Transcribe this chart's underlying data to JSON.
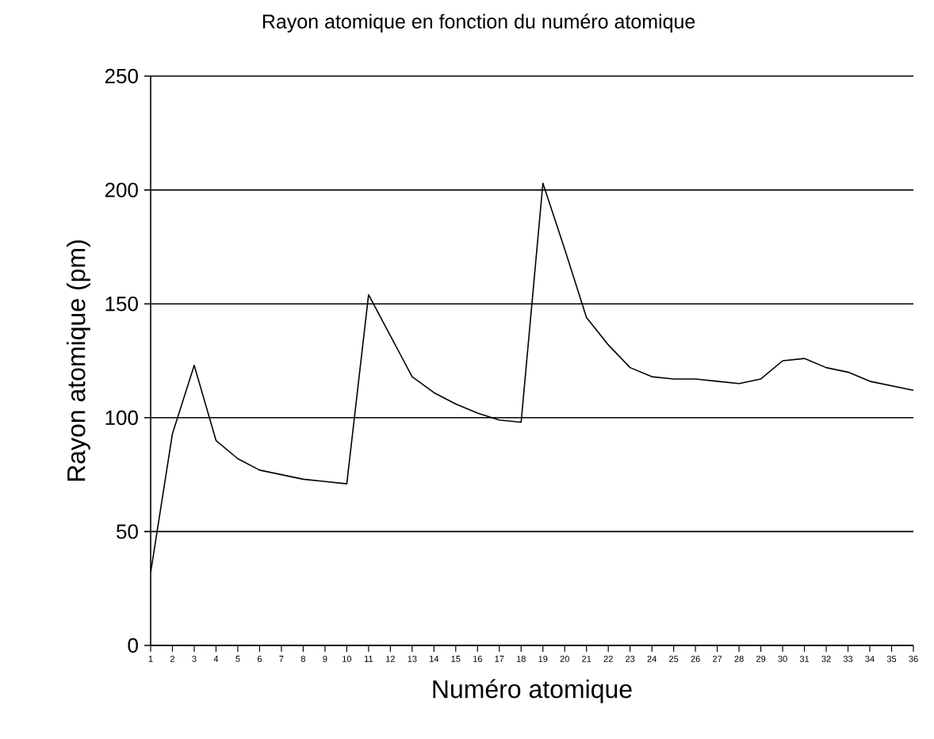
{
  "chart_data": {
    "type": "line",
    "title": "Rayon atomique en fonction du numéro atomique",
    "xlabel": "Numéro atomique",
    "ylabel": "Rayon atomique (pm)",
    "categories": [
      "1",
      "2",
      "3",
      "4",
      "5",
      "6",
      "7",
      "8",
      "9",
      "10",
      "11",
      "12",
      "13",
      "14",
      "15",
      "16",
      "17",
      "18",
      "19",
      "20",
      "21",
      "22",
      "23",
      "24",
      "25",
      "26",
      "27",
      "28",
      "29",
      "30",
      "31",
      "32",
      "33",
      "34",
      "35",
      "36"
    ],
    "values": [
      32,
      93,
      123,
      90,
      82,
      77,
      75,
      73,
      72,
      71,
      154,
      136,
      118,
      111,
      106,
      102,
      99,
      98,
      203,
      174,
      144,
      132,
      122,
      118,
      117,
      117,
      116,
      115,
      117,
      125,
      126,
      122,
      120,
      116,
      114,
      112
    ],
    "color": "#000000",
    "ylim": [
      0,
      250
    ],
    "yticks": [
      0,
      50,
      100,
      150,
      200,
      250
    ],
    "grid": "y"
  }
}
